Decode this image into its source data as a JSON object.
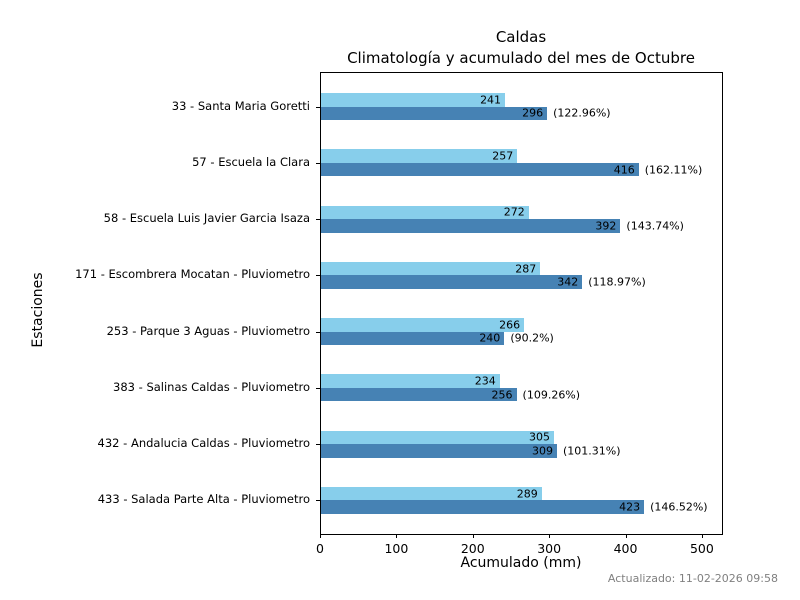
{
  "title": {
    "line1": "Caldas",
    "line2": "Climatología y acumulado del mes de Octubre"
  },
  "axes": {
    "xlabel": "Acumulado (mm)",
    "ylabel": "Estaciones"
  },
  "footer": {
    "updated": "Actualizado: 11-02-2026 09:58"
  },
  "colors": {
    "climatology_bar": "#87CEEB",
    "accumulated_bar": "#4682B4",
    "footer_text": "#808080",
    "axis": "#000000"
  },
  "chart_data": {
    "type": "bar",
    "orientation": "horizontal",
    "title": "Caldas — Climatología y acumulado del mes de Octubre",
    "xlabel": "Acumulado (mm)",
    "ylabel": "Estaciones",
    "xlim": [
      0,
      525
    ],
    "x_ticks": [
      0,
      100,
      200,
      300,
      400,
      500
    ],
    "grid": false,
    "legend": "none",
    "categories": [
      "33 - Santa Maria Goretti",
      "57 - Escuela la Clara",
      "58 - Escuela Luis Javier Garcia Isaza",
      "171 - Escombrera Mocatan - Pluviometro",
      "253 - Parque 3 Aguas - Pluviometro",
      "383 - Salinas Caldas - Pluviometro",
      "432 - Andalucia Caldas - Pluviometro",
      "433 - Salada Parte Alta - Pluviometro"
    ],
    "series": [
      {
        "name": "Climatología",
        "color": "#87CEEB",
        "values": [
          241,
          257,
          272,
          287,
          266,
          234,
          305,
          289
        ]
      },
      {
        "name": "Acumulado",
        "color": "#4682B4",
        "values": [
          296,
          416,
          392,
          342,
          240,
          256,
          309,
          423
        ],
        "pct_labels": [
          "(122.96%)",
          "(162.11%)",
          "(143.74%)",
          "(118.97%)",
          "(90.2%)",
          "(109.26%)",
          "(101.31%)",
          "(146.52%)"
        ]
      }
    ]
  }
}
